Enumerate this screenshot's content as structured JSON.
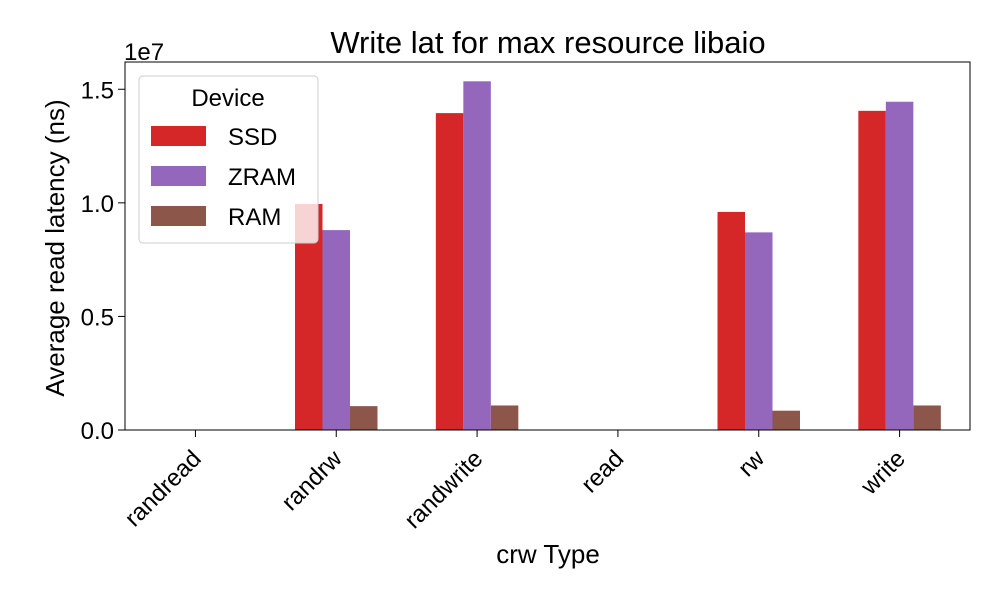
{
  "chart_data": {
    "type": "bar",
    "title": "Write lat for max resource libaio",
    "xlabel": "crw Type",
    "ylabel": "Average read latency (ns)",
    "y_multiplier_label": "1e7",
    "y_scale": 10000000,
    "categories": [
      "randread",
      "randrw",
      "randwrite",
      "read",
      "rw",
      "write"
    ],
    "ylim": [
      0,
      16200000
    ],
    "y_ticks": [
      0,
      5000000,
      10000000,
      15000000
    ],
    "y_tick_labels": [
      "0.0",
      "0.5",
      "1.0",
      "1.5"
    ],
    "legend": {
      "title": "Device",
      "placement": "upper-left"
    },
    "grid": false,
    "series": [
      {
        "name": "SSD",
        "color": "#d62728",
        "values": [
          0,
          9950000,
          13950000,
          0,
          9600000,
          14050000
        ]
      },
      {
        "name": "ZRAM",
        "color": "#9467bd",
        "values": [
          0,
          8800000,
          15350000,
          0,
          8700000,
          14450000
        ]
      },
      {
        "name": "RAM",
        "color": "#8c564b",
        "values": [
          0,
          1050000,
          1080000,
          0,
          850000,
          1080000
        ]
      }
    ]
  }
}
